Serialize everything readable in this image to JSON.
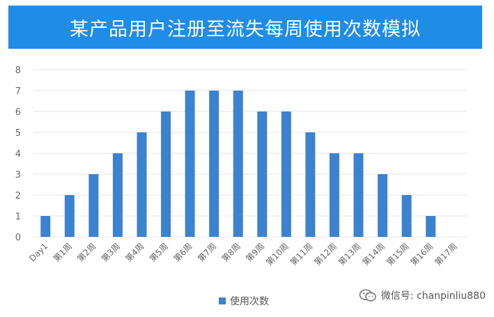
{
  "colors": {
    "banner": "#1f8ce6",
    "bar": "#3b82d0",
    "grid": "#e4e4e4",
    "axis_text": "#666666"
  },
  "watermark": {
    "icon": "wechat-icon",
    "text": "微信号: chanpinliu880"
  },
  "chart_data": {
    "type": "bar",
    "title": "某产品用户注册至流失每周使用次数模拟",
    "xlabel": "",
    "ylabel": "",
    "ylim": [
      0,
      8
    ],
    "yticks": [
      0,
      1,
      2,
      3,
      4,
      5,
      6,
      7,
      8
    ],
    "grid": true,
    "legend_position": "bottom",
    "categories": [
      "Day1",
      "第1周",
      "第2周",
      "第3周",
      "第4周",
      "第5周",
      "第6周",
      "第7周",
      "第8周",
      "第9周",
      "第10周",
      "第11周",
      "第12周",
      "第13周",
      "第14周",
      "第15周",
      "第16周",
      "第17周"
    ],
    "series": [
      {
        "name": "使用次数",
        "values": [
          1,
          2,
          3,
          4,
          5,
          6,
          7,
          7,
          7,
          6,
          6,
          5,
          4,
          4,
          3,
          2,
          1,
          0
        ]
      }
    ]
  }
}
